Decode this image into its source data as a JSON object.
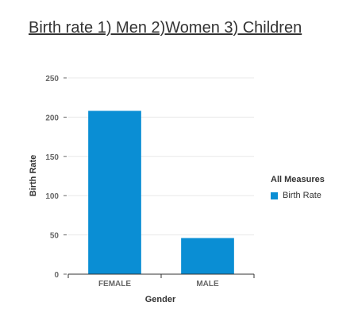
{
  "title": "Birth rate 1) Men 2)Women 3) Children",
  "colors": {
    "bar": "#0a8ed4",
    "grid": "#e8e8e8",
    "axis": "#333333",
    "tick_text": "#666666"
  },
  "legend": {
    "title": "All Measures",
    "items": [
      {
        "label": "Birth Rate",
        "color": "#0a8ed4"
      }
    ]
  },
  "chart_data": {
    "type": "bar",
    "title": "Birth rate 1) Men 2)Women 3) Children",
    "categories": [
      "FEMALE",
      "MALE"
    ],
    "series": [
      {
        "name": "Birth Rate",
        "values": [
          208,
          46
        ]
      }
    ],
    "xlabel": "Gender",
    "ylabel": "Birth Rate",
    "ylim": [
      0,
      250
    ],
    "yticks": [
      0,
      50,
      100,
      150,
      200,
      250
    ],
    "grid": true,
    "legend_position": "right"
  }
}
